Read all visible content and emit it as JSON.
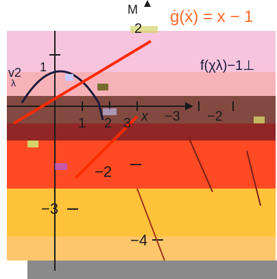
{
  "graph": {
    "x_axis_label": "x",
    "y_top_glyphs": "M",
    "equation_g": "ġ(ẋ) = x − 1",
    "equation_f": "f(χλ)−1⊥",
    "glyph_left": "v2",
    "glyph_left_sub": "λ",
    "tick_labels": {
      "x_pos_1": "1",
      "x_pos_2": "2",
      "x_pos_3": "3",
      "x_neg_3": "−3",
      "x_neg_2": "−2",
      "y_pos_1": "1",
      "y_pos_2": "2",
      "y_neg_2": "−2",
      "y_neg_3": "−3",
      "y_neg_4": "−4"
    },
    "colors": {
      "equation_g": "#ff6a2a",
      "curve_dark": "#1a1a3a",
      "line_red": "#ff2a00",
      "pink_band": "#f6c4dd",
      "orange_band": "#ff6a32",
      "yellow_band": "#ffc23a",
      "gray_bottom": "#8a8a8a"
    }
  }
}
